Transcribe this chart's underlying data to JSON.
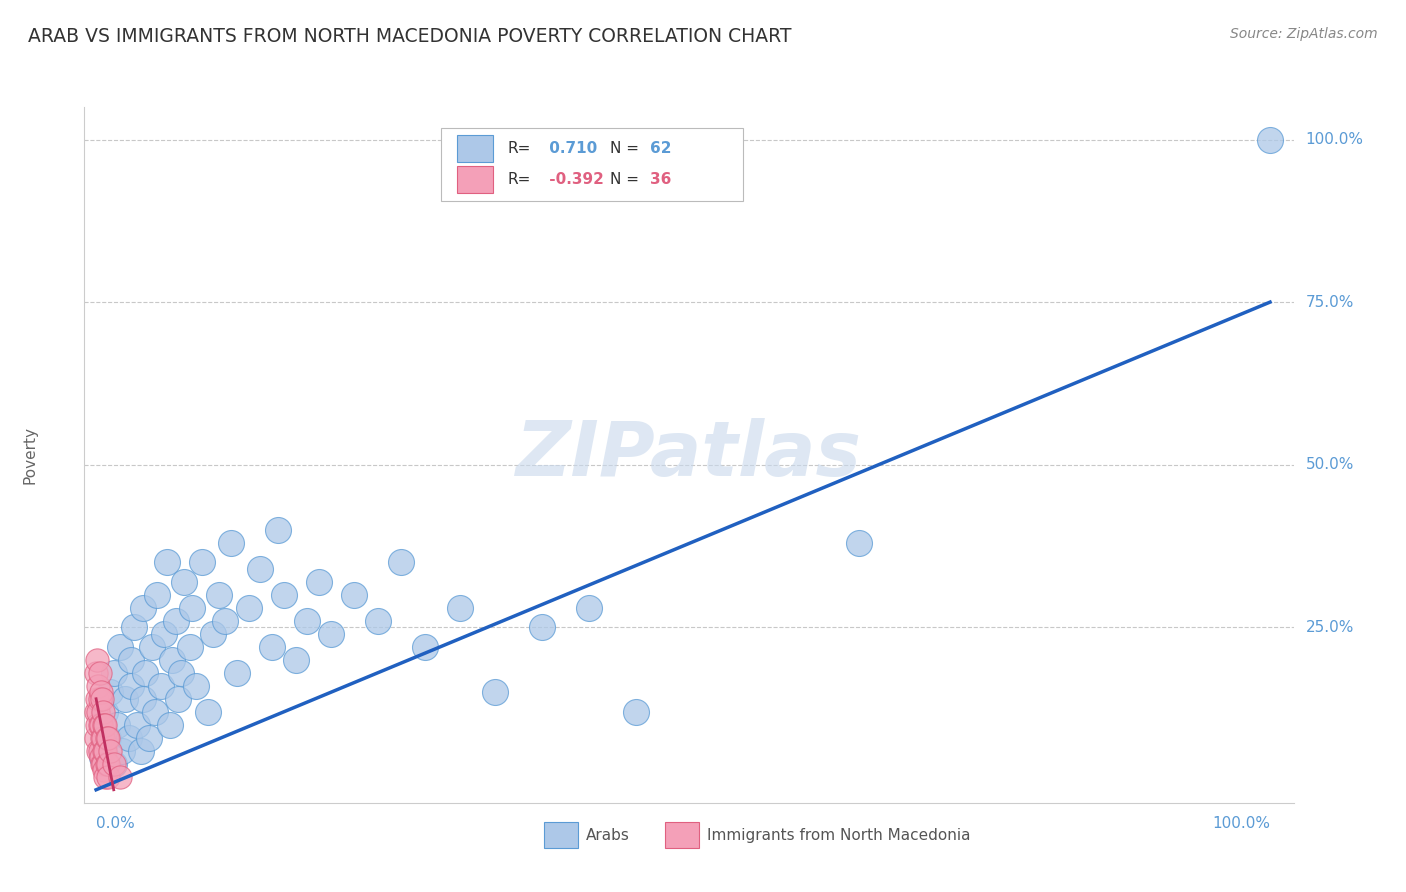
{
  "title": "ARAB VS IMMIGRANTS FROM NORTH MACEDONIA POVERTY CORRELATION CHART",
  "source": "Source: ZipAtlas.com",
  "ylabel": "Poverty",
  "legend_r_arab": "0.710",
  "legend_n_arab": "62",
  "legend_r_mac": "-0.392",
  "legend_n_mac": "36",
  "legend_label_arab": "Arabs",
  "legend_label_mac": "Immigrants from North Macedonia",
  "color_arab_fill": "#adc8e8",
  "color_mac_fill": "#f4a0b8",
  "color_arab_edge": "#5b9bd5",
  "color_mac_edge": "#e06080",
  "color_arab_line": "#2060c0",
  "color_mac_line": "#c03060",
  "color_axis_label": "#5b9bd5",
  "watermark_color": "#c8d8ec",
  "arab_x": [
    0.005,
    0.008,
    0.01,
    0.012,
    0.015,
    0.015,
    0.018,
    0.02,
    0.022,
    0.025,
    0.028,
    0.03,
    0.03,
    0.032,
    0.035,
    0.038,
    0.04,
    0.04,
    0.042,
    0.045,
    0.048,
    0.05,
    0.052,
    0.055,
    0.058,
    0.06,
    0.063,
    0.065,
    0.068,
    0.07,
    0.072,
    0.075,
    0.08,
    0.082,
    0.085,
    0.09,
    0.095,
    0.1,
    0.105,
    0.11,
    0.115,
    0.12,
    0.13,
    0.14,
    0.15,
    0.155,
    0.16,
    0.17,
    0.18,
    0.19,
    0.2,
    0.22,
    0.24,
    0.26,
    0.28,
    0.31,
    0.34,
    0.38,
    0.42,
    0.46,
    0.65,
    1.0
  ],
  "arab_y": [
    0.05,
    0.12,
    0.08,
    0.15,
    0.04,
    0.18,
    0.1,
    0.22,
    0.06,
    0.14,
    0.08,
    0.2,
    0.16,
    0.25,
    0.1,
    0.06,
    0.14,
    0.28,
    0.18,
    0.08,
    0.22,
    0.12,
    0.3,
    0.16,
    0.24,
    0.35,
    0.1,
    0.2,
    0.26,
    0.14,
    0.18,
    0.32,
    0.22,
    0.28,
    0.16,
    0.35,
    0.12,
    0.24,
    0.3,
    0.26,
    0.38,
    0.18,
    0.28,
    0.34,
    0.22,
    0.4,
    0.3,
    0.2,
    0.26,
    0.32,
    0.24,
    0.3,
    0.26,
    0.35,
    0.22,
    0.28,
    0.15,
    0.25,
    0.28,
    0.12,
    0.38,
    1.0
  ],
  "mac_x": [
    0.0,
    0.0,
    0.0,
    0.001,
    0.001,
    0.001,
    0.002,
    0.002,
    0.002,
    0.003,
    0.003,
    0.003,
    0.003,
    0.004,
    0.004,
    0.004,
    0.005,
    0.005,
    0.005,
    0.006,
    0.006,
    0.006,
    0.007,
    0.007,
    0.007,
    0.008,
    0.008,
    0.008,
    0.009,
    0.009,
    0.01,
    0.01,
    0.01,
    0.012,
    0.015,
    0.02
  ],
  "mac_y": [
    0.18,
    0.12,
    0.08,
    0.2,
    0.14,
    0.1,
    0.16,
    0.12,
    0.06,
    0.18,
    0.1,
    0.14,
    0.06,
    0.15,
    0.1,
    0.05,
    0.14,
    0.08,
    0.04,
    0.12,
    0.08,
    0.04,
    0.1,
    0.06,
    0.03,
    0.1,
    0.06,
    0.02,
    0.08,
    0.04,
    0.08,
    0.04,
    0.02,
    0.06,
    0.04,
    0.02
  ],
  "arab_line_x0": 0.0,
  "arab_line_x1": 1.0,
  "arab_line_y0": 0.0,
  "arab_line_y1": 0.75,
  "mac_line_x0": 0.0,
  "mac_line_x1": 0.015,
  "mac_line_y0": 0.14,
  "mac_line_y1": 0.0,
  "xmin": 0.0,
  "xmax": 1.0,
  "ymin": 0.0,
  "ymax": 1.0,
  "ytick_vals": [
    0.25,
    0.5,
    0.75,
    1.0
  ],
  "ytick_labels": [
    "25.0%",
    "50.0%",
    "75.0%",
    "100.0%"
  ],
  "xtick_left_label": "0.0%",
  "xtick_right_label": "100.0%"
}
